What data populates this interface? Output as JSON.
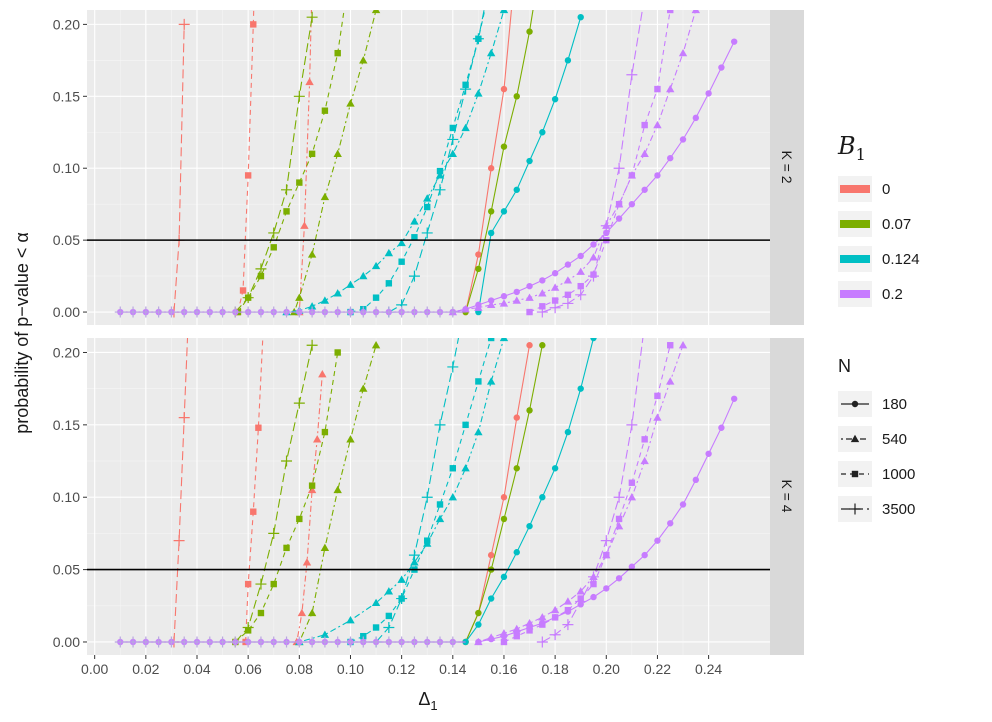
{
  "chart_data": {
    "type": "line",
    "title": "",
    "xlabel_base": "Δ",
    "xlabel_sub": "1",
    "ylabel": "probability of p−value < α",
    "xlim": [
      -0.003,
      0.264
    ],
    "ylim": [
      -0.009,
      0.21
    ],
    "x_ticks": [
      "0.00",
      "0.02",
      "0.04",
      "0.06",
      "0.08",
      "0.10",
      "0.12",
      "0.14",
      "0.16",
      "0.18",
      "0.20",
      "0.22",
      "0.24"
    ],
    "y_ticks": [
      "0.00",
      "0.05",
      "0.10",
      "0.15",
      "0.20"
    ],
    "hline": 0.05,
    "grid": true,
    "facets": [
      "K = 2",
      "K = 4"
    ],
    "legend_b": {
      "title_base": "B",
      "title_sub": "1",
      "items": [
        {
          "label": "0",
          "color": "#F8766D"
        },
        {
          "label": "0.07",
          "color": "#7CAE00"
        },
        {
          "label": "0.124",
          "color": "#00BFC4"
        },
        {
          "label": "0.2",
          "color": "#C77CFF"
        }
      ]
    },
    "legend_n": {
      "title": "N",
      "items": [
        {
          "label": "180",
          "shape": "circle",
          "dash": "solid"
        },
        {
          "label": "540",
          "shape": "triangle",
          "dash": "dotdash"
        },
        {
          "label": "1000",
          "shape": "square",
          "dash": "dashed"
        },
        {
          "label": "3500",
          "shape": "plus",
          "dash": "longdash"
        }
      ]
    },
    "series": [
      {
        "panel": 0,
        "b": "0",
        "n": "180",
        "x": [
          0.145,
          0.15,
          0.155,
          0.16,
          0.165
        ],
        "y": [
          0.0,
          0.04,
          0.1,
          0.155,
          0.25
        ]
      },
      {
        "panel": 0,
        "b": "0",
        "n": "540",
        "x": [
          0.08,
          0.082,
          0.084,
          0.086
        ],
        "y": [
          0.0,
          0.06,
          0.16,
          0.3
        ]
      },
      {
        "panel": 0,
        "b": "0",
        "n": "1000",
        "x": [
          0.056,
          0.058,
          0.06,
          0.062,
          0.064
        ],
        "y": [
          0.0,
          0.015,
          0.095,
          0.2,
          0.32
        ]
      },
      {
        "panel": 0,
        "b": "0",
        "n": "3500",
        "x": [
          0.031,
          0.033,
          0.035
        ],
        "y": [
          0.0,
          0.05,
          0.2
        ]
      },
      {
        "panel": 0,
        "b": "0.07",
        "n": "180",
        "x": [
          0.145,
          0.15,
          0.155,
          0.16,
          0.165,
          0.17,
          0.175
        ],
        "y": [
          0.0,
          0.03,
          0.07,
          0.115,
          0.15,
          0.195,
          0.25
        ]
      },
      {
        "panel": 0,
        "b": "0.07",
        "n": "540",
        "x": [
          0.078,
          0.08,
          0.085,
          0.09,
          0.095,
          0.1,
          0.105,
          0.11
        ],
        "y": [
          0.0,
          0.01,
          0.04,
          0.08,
          0.11,
          0.145,
          0.175,
          0.21
        ]
      },
      {
        "panel": 0,
        "b": "0.07",
        "n": "1000",
        "x": [
          0.056,
          0.06,
          0.065,
          0.07,
          0.075,
          0.08,
          0.085,
          0.09,
          0.095,
          0.1
        ],
        "y": [
          0.0,
          0.01,
          0.025,
          0.045,
          0.07,
          0.09,
          0.11,
          0.14,
          0.18,
          0.24
        ]
      },
      {
        "panel": 0,
        "b": "0.07",
        "n": "3500",
        "x": [
          0.055,
          0.06,
          0.065,
          0.07,
          0.075,
          0.08,
          0.085
        ],
        "y": [
          0.0,
          0.01,
          0.03,
          0.055,
          0.085,
          0.15,
          0.205
        ]
      },
      {
        "panel": 0,
        "b": "0.124",
        "n": "180",
        "x": [
          0.15,
          0.155,
          0.16,
          0.165,
          0.17,
          0.175,
          0.18,
          0.185,
          0.19
        ],
        "y": [
          0.0,
          0.055,
          0.07,
          0.085,
          0.105,
          0.125,
          0.148,
          0.175,
          0.205
        ]
      },
      {
        "panel": 0,
        "b": "0.124",
        "n": "540",
        "x": [
          0.075,
          0.08,
          0.085,
          0.09,
          0.095,
          0.1,
          0.105,
          0.11,
          0.115,
          0.12,
          0.125,
          0.13,
          0.135,
          0.14,
          0.145,
          0.15,
          0.155,
          0.16
        ],
        "y": [
          0.0,
          0.001,
          0.004,
          0.008,
          0.013,
          0.019,
          0.025,
          0.032,
          0.041,
          0.048,
          0.063,
          0.079,
          0.095,
          0.11,
          0.128,
          0.152,
          0.18,
          0.21
        ]
      },
      {
        "panel": 0,
        "b": "0.124",
        "n": "1000",
        "x": [
          0.1,
          0.105,
          0.11,
          0.115,
          0.12,
          0.125,
          0.13,
          0.135,
          0.14,
          0.145,
          0.15,
          0.155
        ],
        "y": [
          0.0,
          0.002,
          0.01,
          0.02,
          0.035,
          0.052,
          0.073,
          0.098,
          0.128,
          0.158,
          0.19,
          0.23
        ]
      },
      {
        "panel": 0,
        "b": "0.124",
        "n": "3500",
        "x": [
          0.115,
          0.12,
          0.125,
          0.13,
          0.135,
          0.14,
          0.145,
          0.15,
          0.155
        ],
        "y": [
          0.0,
          0.005,
          0.025,
          0.055,
          0.085,
          0.12,
          0.155,
          0.19,
          0.235
        ]
      },
      {
        "panel": 0,
        "b": "0.2",
        "n": "180",
        "x": [
          0.14,
          0.145,
          0.15,
          0.155,
          0.16,
          0.165,
          0.17,
          0.175,
          0.18,
          0.185,
          0.19,
          0.195,
          0.2,
          0.205,
          0.21,
          0.215,
          0.22,
          0.225,
          0.23,
          0.235,
          0.24,
          0.245,
          0.25
        ],
        "y": [
          0.0,
          0.002,
          0.005,
          0.008,
          0.011,
          0.014,
          0.018,
          0.022,
          0.027,
          0.033,
          0.039,
          0.047,
          0.055,
          0.065,
          0.075,
          0.085,
          0.095,
          0.107,
          0.12,
          0.135,
          0.152,
          0.17,
          0.188
        ]
      },
      {
        "panel": 0,
        "b": "0.2",
        "n": "540",
        "x": [
          0.14,
          0.145,
          0.15,
          0.155,
          0.16,
          0.165,
          0.17,
          0.175,
          0.18,
          0.185,
          0.19,
          0.195,
          0.2,
          0.205,
          0.21,
          0.215,
          0.22,
          0.225,
          0.23,
          0.235
        ],
        "y": [
          0.0,
          0.002,
          0.003,
          0.005,
          0.006,
          0.008,
          0.01,
          0.013,
          0.017,
          0.022,
          0.028,
          0.038,
          0.06,
          0.075,
          0.095,
          0.11,
          0.13,
          0.155,
          0.18,
          0.21
        ]
      },
      {
        "panel": 0,
        "b": "0.2",
        "n": "1000",
        "x": [
          0.17,
          0.175,
          0.18,
          0.185,
          0.19,
          0.195,
          0.2,
          0.205,
          0.21,
          0.215,
          0.22,
          0.225
        ],
        "y": [
          0.0,
          0.004,
          0.008,
          0.012,
          0.018,
          0.026,
          0.05,
          0.075,
          0.095,
          0.13,
          0.155,
          0.21
        ]
      },
      {
        "panel": 0,
        "b": "0.2",
        "n": "3500",
        "x": [
          0.175,
          0.18,
          0.185,
          0.19,
          0.195,
          0.2,
          0.205,
          0.21,
          0.215
        ],
        "y": [
          0.0,
          0.003,
          0.006,
          0.012,
          0.025,
          0.06,
          0.1,
          0.165,
          0.22
        ]
      },
      {
        "panel": 1,
        "b": "0",
        "n": "180",
        "x": [
          0.145,
          0.15,
          0.155,
          0.16,
          0.165,
          0.17
        ],
        "y": [
          0.0,
          0.02,
          0.06,
          0.1,
          0.155,
          0.205
        ]
      },
      {
        "panel": 1,
        "b": "0",
        "n": "540",
        "x": [
          0.079,
          0.081,
          0.083,
          0.085,
          0.087,
          0.089
        ],
        "y": [
          0.0,
          0.02,
          0.055,
          0.105,
          0.14,
          0.185
        ]
      },
      {
        "panel": 1,
        "b": "0",
        "n": "1000",
        "x": [
          0.059,
          0.06,
          0.062,
          0.064,
          0.066
        ],
        "y": [
          0.0,
          0.04,
          0.09,
          0.148,
          0.22
        ]
      },
      {
        "panel": 1,
        "b": "0",
        "n": "3500",
        "x": [
          0.031,
          0.033,
          0.035,
          0.037
        ],
        "y": [
          0.0,
          0.07,
          0.155,
          0.24
        ]
      },
      {
        "panel": 1,
        "b": "0.07",
        "n": "180",
        "x": [
          0.145,
          0.15,
          0.155,
          0.16,
          0.165,
          0.17,
          0.175
        ],
        "y": [
          0.0,
          0.02,
          0.05,
          0.085,
          0.12,
          0.16,
          0.205
        ]
      },
      {
        "panel": 1,
        "b": "0.07",
        "n": "540",
        "x": [
          0.08,
          0.085,
          0.09,
          0.095,
          0.1,
          0.105,
          0.11
        ],
        "y": [
          0.0,
          0.02,
          0.065,
          0.105,
          0.14,
          0.175,
          0.205
        ]
      },
      {
        "panel": 1,
        "b": "0.07",
        "n": "1000",
        "x": [
          0.055,
          0.06,
          0.065,
          0.07,
          0.075,
          0.08,
          0.085,
          0.09,
          0.095
        ],
        "y": [
          0.0,
          0.008,
          0.02,
          0.04,
          0.065,
          0.085,
          0.108,
          0.145,
          0.2
        ]
      },
      {
        "panel": 1,
        "b": "0.07",
        "n": "3500",
        "x": [
          0.055,
          0.06,
          0.065,
          0.07,
          0.075,
          0.08,
          0.085
        ],
        "y": [
          0.0,
          0.01,
          0.04,
          0.075,
          0.125,
          0.165,
          0.205
        ]
      },
      {
        "panel": 1,
        "b": "0.124",
        "n": "180",
        "x": [
          0.145,
          0.15,
          0.155,
          0.16,
          0.165,
          0.17,
          0.175,
          0.18,
          0.185,
          0.19,
          0.195
        ],
        "y": [
          0.0,
          0.012,
          0.03,
          0.045,
          0.062,
          0.08,
          0.1,
          0.12,
          0.145,
          0.175,
          0.21
        ]
      },
      {
        "panel": 1,
        "b": "0.124",
        "n": "540",
        "x": [
          0.08,
          0.09,
          0.1,
          0.11,
          0.115,
          0.12,
          0.125,
          0.13,
          0.135,
          0.14,
          0.145,
          0.15,
          0.155,
          0.16
        ],
        "y": [
          0.0,
          0.005,
          0.015,
          0.027,
          0.035,
          0.043,
          0.055,
          0.068,
          0.085,
          0.1,
          0.12,
          0.145,
          0.18,
          0.21
        ]
      },
      {
        "panel": 1,
        "b": "0.124",
        "n": "1000",
        "x": [
          0.1,
          0.105,
          0.11,
          0.115,
          0.12,
          0.125,
          0.13,
          0.135,
          0.14,
          0.145,
          0.15,
          0.155
        ],
        "y": [
          0.0,
          0.004,
          0.01,
          0.018,
          0.03,
          0.05,
          0.07,
          0.095,
          0.12,
          0.15,
          0.18,
          0.21
        ]
      },
      {
        "panel": 1,
        "b": "0.124",
        "n": "3500",
        "x": [
          0.11,
          0.115,
          0.12,
          0.125,
          0.13,
          0.135,
          0.14,
          0.145
        ],
        "y": [
          0.0,
          0.01,
          0.03,
          0.06,
          0.1,
          0.15,
          0.19,
          0.235
        ]
      },
      {
        "panel": 1,
        "b": "0.2",
        "n": "180",
        "x": [
          0.15,
          0.155,
          0.16,
          0.165,
          0.17,
          0.175,
          0.18,
          0.185,
          0.19,
          0.195,
          0.2,
          0.205,
          0.21,
          0.215,
          0.22,
          0.225,
          0.23,
          0.235,
          0.24,
          0.245,
          0.25
        ],
        "y": [
          0.0,
          0.002,
          0.004,
          0.007,
          0.01,
          0.013,
          0.017,
          0.021,
          0.026,
          0.031,
          0.037,
          0.044,
          0.052,
          0.06,
          0.07,
          0.082,
          0.095,
          0.112,
          0.13,
          0.148,
          0.168
        ]
      },
      {
        "panel": 1,
        "b": "0.2",
        "n": "540",
        "x": [
          0.15,
          0.155,
          0.16,
          0.165,
          0.17,
          0.175,
          0.18,
          0.185,
          0.19,
          0.195,
          0.2,
          0.205,
          0.21,
          0.215,
          0.22,
          0.225,
          0.23
        ],
        "y": [
          0.0,
          0.003,
          0.006,
          0.009,
          0.013,
          0.017,
          0.022,
          0.028,
          0.035,
          0.045,
          0.06,
          0.08,
          0.1,
          0.125,
          0.155,
          0.18,
          0.205
        ]
      },
      {
        "panel": 1,
        "b": "0.2",
        "n": "1000",
        "x": [
          0.16,
          0.165,
          0.17,
          0.175,
          0.18,
          0.185,
          0.19,
          0.195,
          0.2,
          0.205,
          0.21,
          0.215,
          0.22,
          0.225
        ],
        "y": [
          0.0,
          0.004,
          0.008,
          0.012,
          0.017,
          0.022,
          0.03,
          0.04,
          0.06,
          0.085,
          0.11,
          0.14,
          0.17,
          0.205
        ]
      },
      {
        "panel": 1,
        "b": "0.2",
        "n": "3500",
        "x": [
          0.175,
          0.18,
          0.185,
          0.19,
          0.195,
          0.2,
          0.205,
          0.21,
          0.215
        ],
        "y": [
          0.0,
          0.005,
          0.012,
          0.028,
          0.045,
          0.07,
          0.1,
          0.15,
          0.22
        ]
      }
    ]
  }
}
